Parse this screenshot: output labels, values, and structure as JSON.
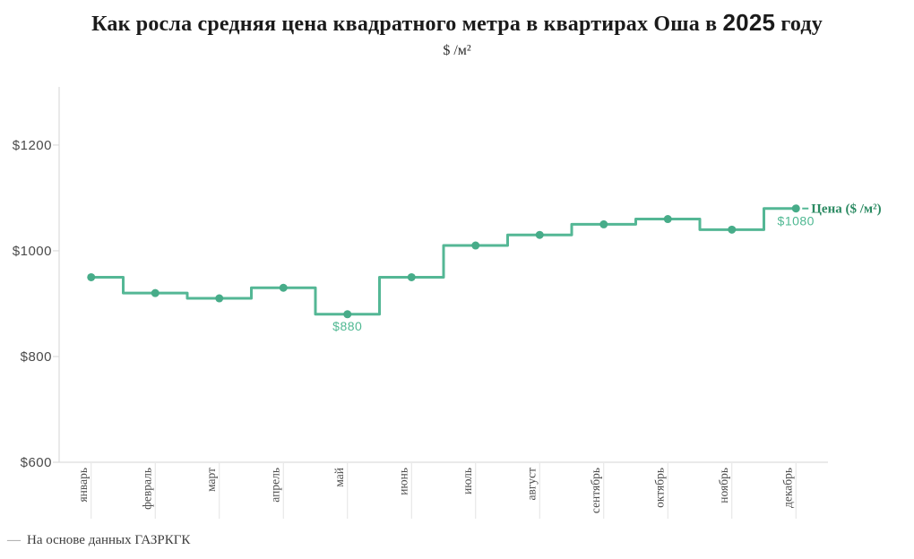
{
  "header": {
    "title_prefix": "Как росла средняя цена квадратного метра в квартирах Оша в ",
    "title_year": "2025",
    "title_suffix": " году",
    "subtitle": "$ /м²"
  },
  "footer": {
    "dash": "—",
    "source_text": "На основе данных ГАЗРКГК"
  },
  "colors": {
    "line": "#54b795",
    "dot": "#47ac89",
    "value_label": "#4fb892",
    "legend_text": "#2b8a62",
    "axis_label": "#4a4a4a",
    "month_label": "#4c4c4c",
    "axis_line": "#d6d6d6",
    "tick_line": "#e2e2e2",
    "y_tick": "#d6d6d6"
  },
  "chart_data": {
    "type": "line",
    "line_style": "step",
    "title": "Как росла средняя цена квадратного метра в квартирах Оша в 2025 году",
    "subtitle": "$ /м²",
    "categories": [
      "январь",
      "февраль",
      "март",
      "апрель",
      "май",
      "июнь",
      "июль",
      "август",
      "сентябрь",
      "октябрь",
      "ноябрь",
      "декабрь"
    ],
    "series": [
      {
        "name": "Цена ($ /м²)",
        "values": [
          950,
          920,
          910,
          930,
          880,
          950,
          1010,
          1030,
          1050,
          1060,
          1040,
          1080
        ]
      }
    ],
    "y_axis": {
      "min": 600,
      "max": 1310,
      "ticks": [
        600,
        800,
        1000,
        1200
      ],
      "tick_labels": [
        "$600",
        "$800",
        "$1000",
        "$1200"
      ]
    },
    "grid": false,
    "legend": {
      "label": "Цена ($ /м²)",
      "position": "end-of-line"
    },
    "annotations": [
      {
        "text": "$880",
        "month_index": 4,
        "placement": "below"
      },
      {
        "text": "$1080",
        "month_index": 11,
        "placement": "below"
      }
    ],
    "source": "На основе данных ГАЗРКГК"
  }
}
